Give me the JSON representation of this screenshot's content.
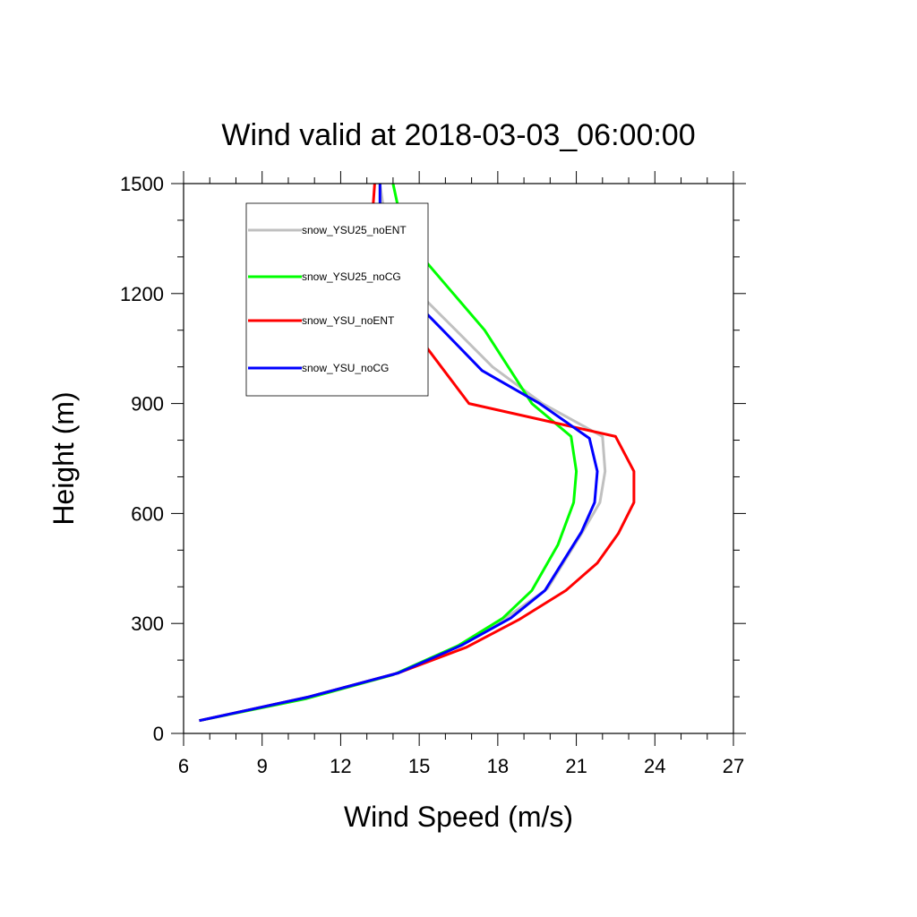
{
  "chart_data": {
    "type": "line",
    "title": "Wind valid at 2018-03-03_06:00:00",
    "xlabel": "Wind Speed (m/s)",
    "ylabel": "Height (m)",
    "xlim": [
      6,
      27
    ],
    "ylim": [
      0,
      1500
    ],
    "xticks": [
      6,
      9,
      12,
      15,
      18,
      21,
      24,
      27
    ],
    "yticks": [
      0,
      300,
      600,
      900,
      1200,
      1500
    ],
    "xtick_labels": [
      "6",
      "9",
      "12",
      "15",
      "18",
      "21",
      "24",
      "27"
    ],
    "ytick_labels": [
      "0",
      "300",
      "600",
      "900",
      "1200",
      "1500"
    ],
    "grid": false,
    "legend_position": "top-left",
    "series": [
      {
        "name": "snow_YSU25_noENT",
        "color": "#c0c0c0",
        "points": [
          [
            6.6,
            35
          ],
          [
            10.8,
            100
          ],
          [
            14.2,
            165
          ],
          [
            16.7,
            245
          ],
          [
            18.3,
            315
          ],
          [
            19.9,
            395
          ],
          [
            21.2,
            545
          ],
          [
            21.9,
            630
          ],
          [
            22.1,
            715
          ],
          [
            22.0,
            810
          ],
          [
            19.7,
            900
          ],
          [
            17.8,
            1000
          ],
          [
            16.4,
            1100
          ],
          [
            15.0,
            1200
          ],
          [
            14.3,
            1300
          ],
          [
            13.7,
            1400
          ],
          [
            13.5,
            1500
          ]
        ]
      },
      {
        "name": "snow_YSU25_noCG",
        "color": "#00ff00",
        "points": [
          [
            6.6,
            35
          ],
          [
            10.7,
            95
          ],
          [
            14.0,
            160
          ],
          [
            16.5,
            240
          ],
          [
            18.2,
            315
          ],
          [
            19.3,
            390
          ],
          [
            20.3,
            515
          ],
          [
            20.9,
            630
          ],
          [
            21.0,
            715
          ],
          [
            20.8,
            810
          ],
          [
            19.3,
            900
          ],
          [
            17.5,
            1100
          ],
          [
            15.1,
            1300
          ],
          [
            14.3,
            1400
          ],
          [
            14.0,
            1500
          ]
        ]
      },
      {
        "name": "snow_YSU_noENT",
        "color": "#ff0000",
        "points": [
          [
            6.6,
            35
          ],
          [
            10.8,
            100
          ],
          [
            14.2,
            165
          ],
          [
            16.8,
            235
          ],
          [
            18.8,
            310
          ],
          [
            20.6,
            390
          ],
          [
            21.8,
            465
          ],
          [
            22.6,
            545
          ],
          [
            23.2,
            630
          ],
          [
            23.2,
            715
          ],
          [
            22.5,
            810
          ],
          [
            16.9,
            900
          ],
          [
            16.0,
            985
          ],
          [
            15.0,
            1080
          ],
          [
            13.5,
            1195
          ],
          [
            12.9,
            1300
          ],
          [
            13.2,
            1400
          ],
          [
            13.3,
            1500
          ]
        ]
      },
      {
        "name": "snow_YSU_noCG",
        "color": "#0000ff",
        "points": [
          [
            6.6,
            35
          ],
          [
            10.8,
            100
          ],
          [
            14.2,
            165
          ],
          [
            16.6,
            240
          ],
          [
            18.5,
            315
          ],
          [
            19.8,
            390
          ],
          [
            21.2,
            550
          ],
          [
            21.7,
            630
          ],
          [
            21.8,
            715
          ],
          [
            21.5,
            805
          ],
          [
            19.6,
            900
          ],
          [
            17.4,
            990
          ],
          [
            15.9,
            1100
          ],
          [
            14.6,
            1195
          ],
          [
            13.7,
            1300
          ],
          [
            13.5,
            1400
          ],
          [
            13.5,
            1500
          ]
        ]
      }
    ]
  }
}
